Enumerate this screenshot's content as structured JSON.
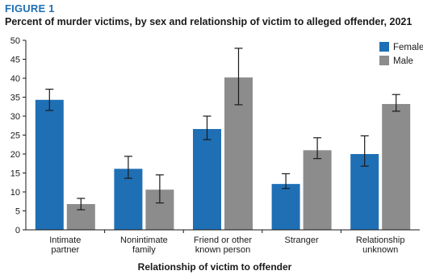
{
  "figure_label": "FIGURE 1",
  "chart_data": {
    "type": "bar",
    "title": "Percent of murder victims, by sex and relationship of victim to alleged offender, 2021",
    "xlabel": "Relationship of victim to offender",
    "ylabel": "",
    "ylim": [
      0,
      50
    ],
    "yticks": [
      0,
      5,
      10,
      15,
      20,
      25,
      30,
      35,
      40,
      45,
      50
    ],
    "grid": false,
    "legend_position": "top-right",
    "categories": [
      [
        "Intimate",
        "partner"
      ],
      [
        "Nonintimate",
        "family"
      ],
      [
        "Friend or other",
        "known person"
      ],
      [
        "Stranger"
      ],
      [
        "Relationship",
        "unknown"
      ]
    ],
    "series": [
      {
        "name": "Female",
        "color": "#1f6fb5",
        "values": [
          34.3,
          16.1,
          26.6,
          12.1,
          20.0
        ],
        "error_low": [
          31.5,
          13.6,
          23.8,
          10.9,
          16.8
        ],
        "error_high": [
          37.1,
          19.4,
          30.0,
          14.8,
          24.8
        ]
      },
      {
        "name": "Male",
        "color": "#8c8c8c",
        "values": [
          6.8,
          10.6,
          40.2,
          21.0,
          33.2
        ],
        "error_low": [
          5.3,
          7.1,
          33.0,
          18.8,
          31.3
        ],
        "error_high": [
          8.3,
          14.5,
          47.9,
          24.3,
          35.7
        ]
      }
    ]
  }
}
